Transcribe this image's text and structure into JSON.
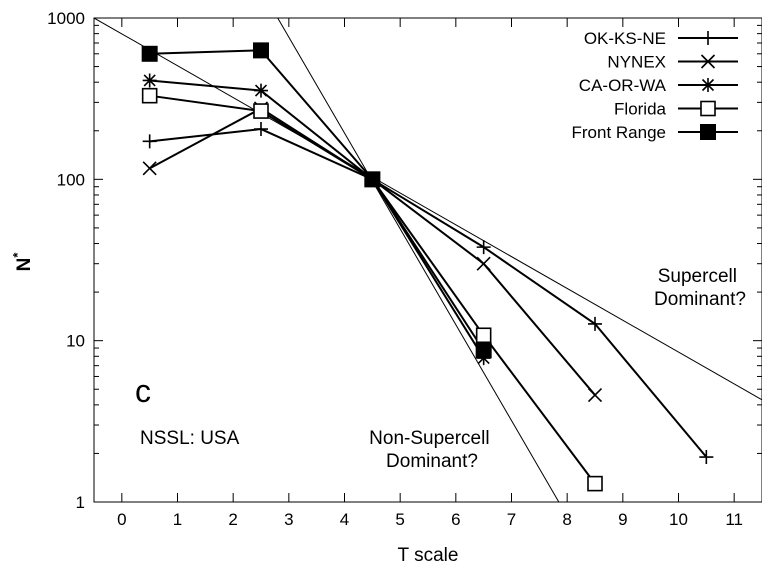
{
  "chart_data": {
    "type": "line",
    "title": "",
    "panel_letter": "c",
    "subtitle_text": "NSSL: USA",
    "xlabel": "T scale",
    "ylabel": "N",
    "ylabel_superscript": "*",
    "xlim": [
      -0.5,
      11.5
    ],
    "ylim": [
      1,
      1000
    ],
    "yscale": "log",
    "x_ticks": [
      0,
      1,
      2,
      3,
      4,
      5,
      6,
      7,
      8,
      9,
      10,
      11
    ],
    "x_tick_labels": [
      "0",
      "1",
      "2",
      "3",
      "4",
      "5",
      "6",
      "7",
      "8",
      "9",
      "10",
      "11"
    ],
    "y_ticks": [
      1,
      10,
      100,
      1000
    ],
    "y_tick_labels": [
      "1",
      "10",
      "100",
      "1000"
    ],
    "grid": false,
    "legend_position": "top-right",
    "series": [
      {
        "name": "OK-KS-NE",
        "marker": "plus",
        "x": [
          0.5,
          2.5,
          4.5,
          6.5,
          8.5,
          10.5
        ],
        "y": [
          172,
          205,
          100,
          38,
          12.7,
          1.9
        ]
      },
      {
        "name": "NYNEX",
        "marker": "cross",
        "x": [
          0.5,
          2.5,
          4.5,
          6.5,
          8.5
        ],
        "y": [
          117,
          275,
          100,
          30,
          4.6
        ]
      },
      {
        "name": "CA-OR-WA",
        "marker": "asterisk",
        "x": [
          0.5,
          2.5,
          4.5,
          6.5
        ],
        "y": [
          410,
          355,
          100,
          7.8
        ]
      },
      {
        "name": "Florida",
        "marker": "open-square",
        "x": [
          0.5,
          2.5,
          4.5,
          6.5,
          8.5
        ],
        "y": [
          330,
          265,
          100,
          10.8,
          1.3
        ]
      },
      {
        "name": "Front Range",
        "marker": "filled-square",
        "x": [
          0.5,
          2.5,
          4.5,
          6.5
        ],
        "y": [
          600,
          630,
          100,
          8.7
        ]
      }
    ],
    "reference_lines": [
      {
        "x": [
          -0.5,
          11.5
        ],
        "y": [
          1000,
          4.3
        ]
      },
      {
        "x": [
          2.8,
          7.85
        ],
        "y": [
          1000,
          1
        ]
      }
    ],
    "annotations": [
      {
        "text_lines": [
          "Supercell",
          "Dominant?"
        ]
      },
      {
        "text_lines": [
          "Non-Supercell",
          "Dominant?"
        ]
      }
    ]
  }
}
